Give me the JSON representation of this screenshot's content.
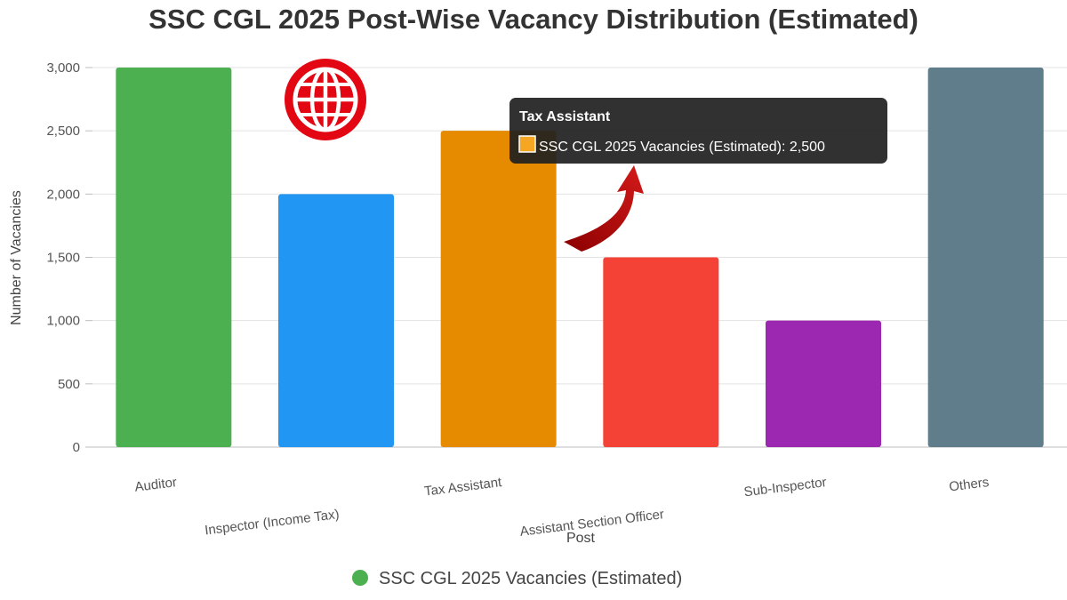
{
  "chart_data": {
    "type": "bar",
    "title": "SSC CGL 2025 Post-Wise Vacancy Distribution (Estimated)",
    "xlabel": "Post",
    "ylabel": "Number of Vacancies",
    "ylim": [
      0,
      3000
    ],
    "yticks": [
      0,
      500,
      1000,
      1500,
      2000,
      2500,
      3000
    ],
    "ytick_labels": [
      "0",
      "500",
      "1,000",
      "1,500",
      "2,000",
      "2,500",
      "3,000"
    ],
    "grid": true,
    "legend_position": "bottom",
    "categories": [
      "Auditor",
      "Inspector (Income Tax)",
      "Tax Assistant",
      "Assistant Section Officer",
      "Sub-Inspector",
      "Others"
    ],
    "series": [
      {
        "name": "SSC CGL 2025 Vacancies (Estimated)",
        "values": [
          3000,
          2000,
          2500,
          1500,
          1000,
          3000
        ],
        "colors": [
          "#4CAF50",
          "#2196F3",
          "#E68A00",
          "#F44336",
          "#9C27B0",
          "#607D8B"
        ]
      }
    ],
    "tooltip": {
      "category_index": 2,
      "title": "Tax Assistant",
      "body": "SSC CGL 2025 Vacancies (Estimated): 2,500"
    }
  },
  "logo": {
    "icon": "globe-icon",
    "color": "#E30613"
  }
}
